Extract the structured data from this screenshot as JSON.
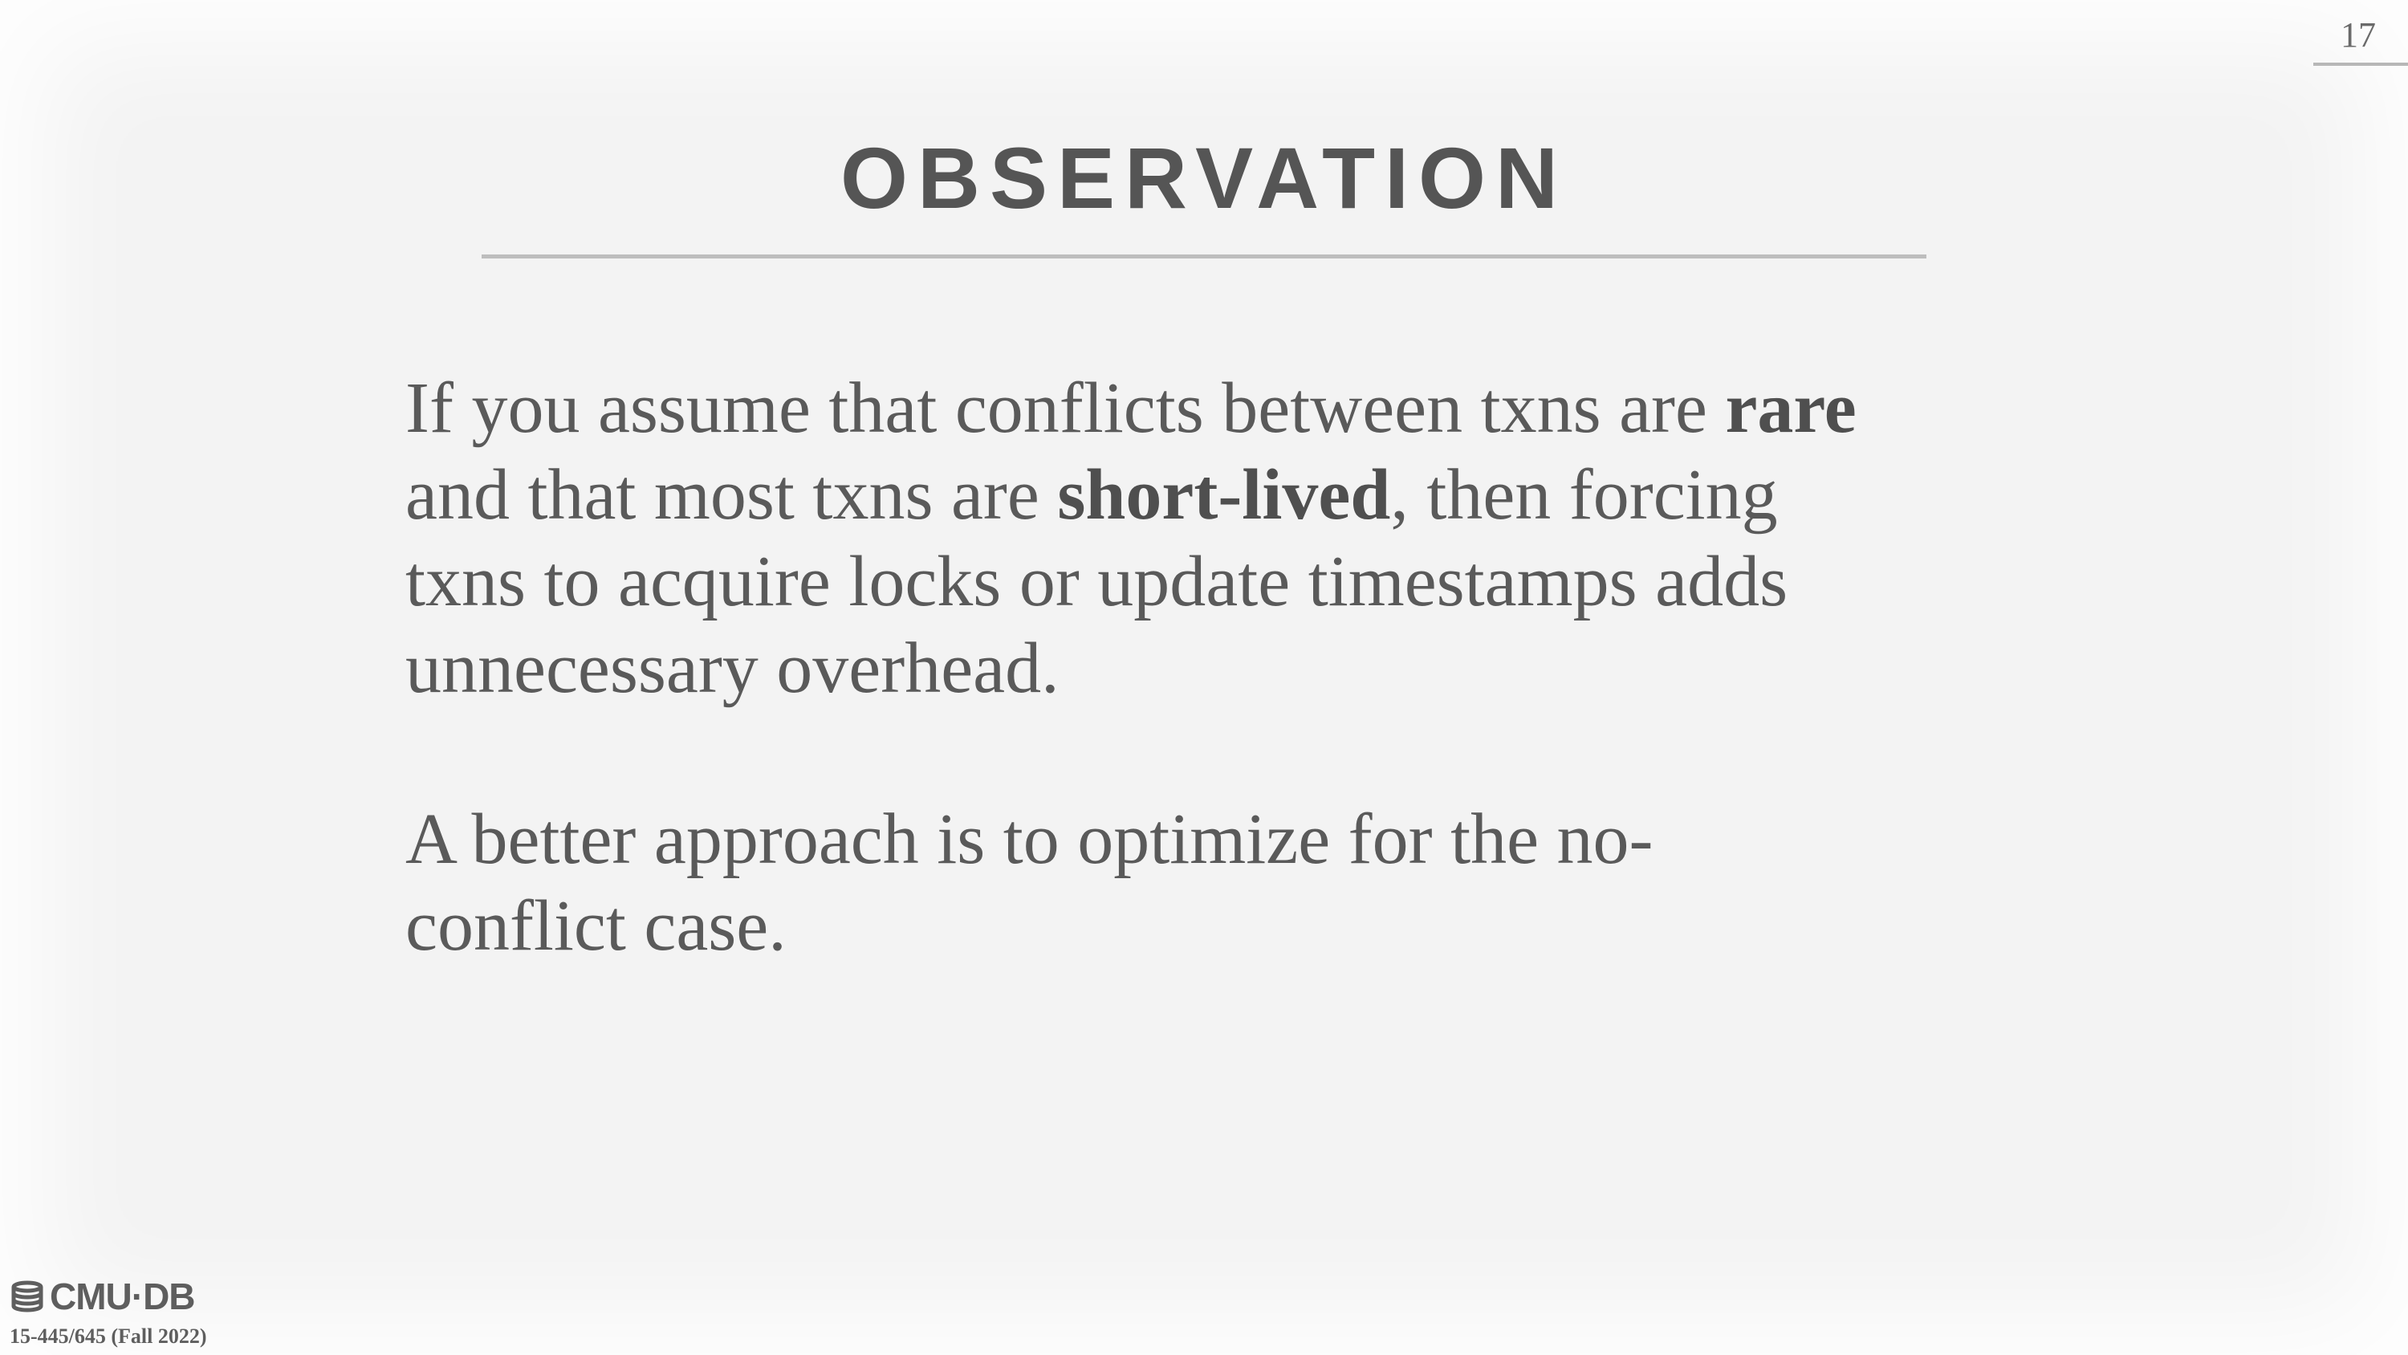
{
  "slide": {
    "page_number": "17",
    "title": "OBSERVATION",
    "paragraph1": {
      "line1_pre": "If you assume that conflicts between txns are ",
      "line1_bold": "rare",
      "line2_pre": "and that most txns are ",
      "line2_bold": "short-lived",
      "line2_post": ", then forcing",
      "line3": "txns to acquire locks or update timestamps adds",
      "line4": "unnecessary overhead."
    },
    "paragraph2": {
      "line1": "A better approach is to optimize for the no-",
      "line2": "conflict case."
    }
  },
  "footer": {
    "logo_text": "CMU·DB",
    "logo_icon": "database-stack-icon",
    "course": "15-445/645 (Fall 2022)"
  },
  "colors": {
    "background": "#f3f3f3",
    "text": "#555555",
    "rule": "#bdbdbd"
  }
}
